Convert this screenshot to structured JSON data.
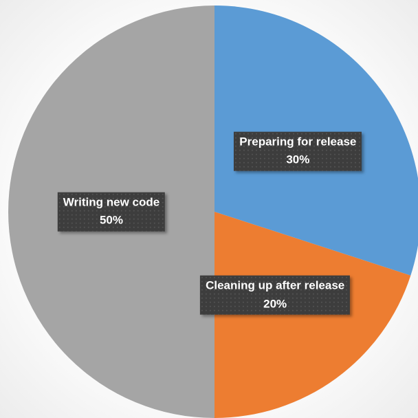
{
  "chart_data": {
    "type": "pie",
    "categories": [
      "Preparing for release",
      "Cleaning up after release",
      "Writing new code"
    ],
    "values": [
      30,
      20,
      50
    ],
    "value_labels": [
      "30%",
      "20%",
      "50%"
    ],
    "colors": [
      "#5b9bd5",
      "#ed7d31",
      "#a5a5a5"
    ]
  }
}
